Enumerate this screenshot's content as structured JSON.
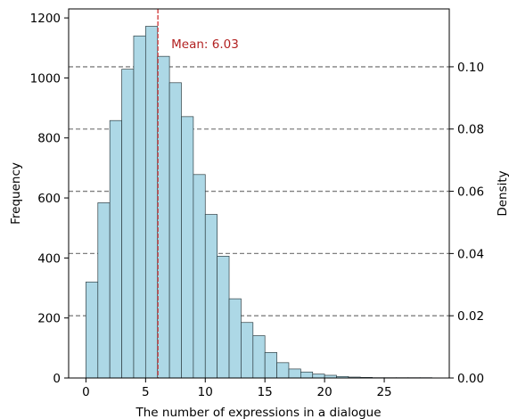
{
  "chart_data": {
    "type": "bar",
    "subtype": "histogram",
    "xlabel": "The number of expressions in a dialogue",
    "ylabel": "Frequency",
    "ylabel_right": "Density",
    "xlim": [
      -1.45,
      30.45
    ],
    "ylim": [
      0,
      1230
    ],
    "ylim_right": [
      0,
      0.1186
    ],
    "x_ticks": [
      0,
      5,
      10,
      15,
      20,
      25
    ],
    "x_tick_labels": [
      "0",
      "5",
      "10",
      "15",
      "20",
      "25"
    ],
    "y_ticks": [
      0,
      200,
      400,
      600,
      800,
      1000,
      1200
    ],
    "y_tick_labels": [
      "0",
      "200",
      "400",
      "600",
      "800",
      "1000",
      "1200"
    ],
    "y_right_ticks": [
      0.0,
      0.02,
      0.04,
      0.06,
      0.08,
      0.1
    ],
    "y_right_tick_labels": [
      "0.00",
      "0.02",
      "0.04",
      "0.06",
      "0.08",
      "0.10"
    ],
    "bin_width": 1,
    "bins": [
      {
        "x0": 0,
        "x1": 1,
        "value": 320
      },
      {
        "x0": 1,
        "x1": 2,
        "value": 584
      },
      {
        "x0": 2,
        "x1": 3,
        "value": 858
      },
      {
        "x0": 3,
        "x1": 4,
        "value": 1029
      },
      {
        "x0": 4,
        "x1": 5,
        "value": 1140
      },
      {
        "x0": 5,
        "x1": 6,
        "value": 1172
      },
      {
        "x0": 6,
        "x1": 7,
        "value": 1072
      },
      {
        "x0": 7,
        "x1": 8,
        "value": 984
      },
      {
        "x0": 8,
        "x1": 9,
        "value": 871
      },
      {
        "x0": 9,
        "x1": 10,
        "value": 678
      },
      {
        "x0": 10,
        "x1": 11,
        "value": 545
      },
      {
        "x0": 11,
        "x1": 12,
        "value": 406
      },
      {
        "x0": 12,
        "x1": 13,
        "value": 264
      },
      {
        "x0": 13,
        "x1": 14,
        "value": 185
      },
      {
        "x0": 14,
        "x1": 15,
        "value": 141
      },
      {
        "x0": 15,
        "x1": 16,
        "value": 85
      },
      {
        "x0": 16,
        "x1": 17,
        "value": 51
      },
      {
        "x0": 17,
        "x1": 18,
        "value": 30
      },
      {
        "x0": 18,
        "x1": 19,
        "value": 20
      },
      {
        "x0": 19,
        "x1": 20,
        "value": 13
      },
      {
        "x0": 20,
        "x1": 21,
        "value": 9
      },
      {
        "x0": 21,
        "x1": 22,
        "value": 5
      },
      {
        "x0": 22,
        "x1": 23,
        "value": 3
      },
      {
        "x0": 23,
        "x1": 24,
        "value": 2
      },
      {
        "x0": 24,
        "x1": 25,
        "value": 1
      },
      {
        "x0": 25,
        "x1": 26,
        "value": 1
      },
      {
        "x0": 26,
        "x1": 27,
        "value": 1
      },
      {
        "x0": 27,
        "x1": 28,
        "value": 1
      },
      {
        "x0": 28,
        "x1": 29,
        "value": 1
      }
    ],
    "mean": 6.03,
    "mean_label": "Mean: 6.03",
    "grid": {
      "axis": "y-right",
      "style": "dashed"
    },
    "colors": {
      "bar_fill": "#add8e6",
      "bar_edge": "#2f3f44",
      "mean_line": "#cc2222",
      "mean_text": "#b22222",
      "grid": "#808080",
      "axis": "#000000"
    }
  }
}
